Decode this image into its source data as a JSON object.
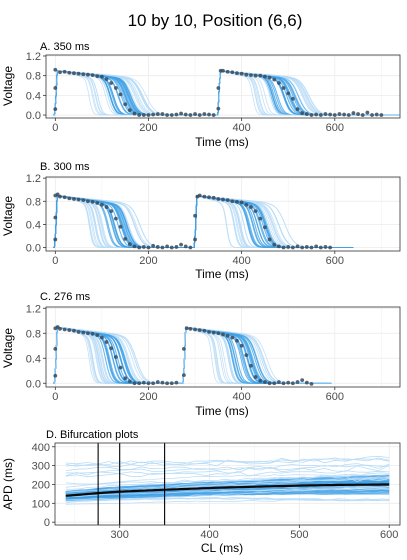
{
  "figure": {
    "title": "10 by 10, Position (6,6)",
    "colors": {
      "band_light": "#b9dcf7",
      "band_dark": "#3fa0e6",
      "ensemble_line": "#1a7fd4",
      "observed_points": "#3a4a5a",
      "mean_line": "#0a0a0a",
      "grid": "#ebebeb",
      "border": "#333333"
    }
  },
  "chart_data": [
    {
      "type": "line",
      "panel": "A. 350 ms",
      "xlabel": "Time (ms)",
      "ylabel": "Voltage",
      "xlim": [
        -20,
        740
      ],
      "ylim": [
        -0.06,
        1.22
      ],
      "xticks": [
        0,
        200,
        400,
        600
      ],
      "yticks": [
        0.0,
        0.4,
        0.8,
        1.2
      ],
      "ytick_labels": [
        "0.0",
        "0.4",
        "0.8",
        "1.2"
      ],
      "grid": true,
      "cycle_length": 350,
      "last_beat_end": 700,
      "median_apd": 165,
      "apd_range": [
        85,
        230
      ],
      "observed_points": [
        [
          0,
          0.12
        ],
        [
          0,
          0.55
        ],
        [
          0,
          0.92
        ],
        [
          10,
          0.87
        ],
        [
          20,
          0.88
        ],
        [
          30,
          0.86
        ],
        [
          40,
          0.85
        ],
        [
          50,
          0.84
        ],
        [
          60,
          0.83
        ],
        [
          70,
          0.82
        ],
        [
          80,
          0.81
        ],
        [
          90,
          0.79
        ],
        [
          100,
          0.78
        ],
        [
          110,
          0.73
        ],
        [
          120,
          0.65
        ],
        [
          130,
          0.55
        ],
        [
          140,
          0.42
        ],
        [
          150,
          0.22
        ],
        [
          160,
          0.1
        ],
        [
          170,
          0.03
        ],
        [
          180,
          0.0
        ],
        [
          190,
          0.0
        ],
        [
          200,
          0.0
        ],
        [
          210,
          0.01
        ],
        [
          220,
          0.02
        ],
        [
          230,
          0.02
        ],
        [
          240,
          0.0
        ],
        [
          250,
          0.0
        ],
        [
          260,
          0.01
        ],
        [
          270,
          0.03
        ],
        [
          280,
          0.01
        ],
        [
          290,
          0.0
        ],
        [
          300,
          0.02
        ],
        [
          310,
          0.0
        ],
        [
          320,
          0.02
        ],
        [
          330,
          0.01
        ],
        [
          340,
          0.0
        ],
        [
          350,
          0.13
        ],
        [
          350,
          0.55
        ],
        [
          355,
          0.9
        ],
        [
          360,
          0.9
        ],
        [
          370,
          0.88
        ],
        [
          380,
          0.87
        ],
        [
          390,
          0.85
        ],
        [
          400,
          0.84
        ],
        [
          410,
          0.82
        ],
        [
          420,
          0.81
        ],
        [
          430,
          0.8
        ],
        [
          440,
          0.8
        ],
        [
          450,
          0.78
        ],
        [
          460,
          0.76
        ],
        [
          470,
          0.72
        ],
        [
          480,
          0.65
        ],
        [
          490,
          0.55
        ],
        [
          500,
          0.44
        ],
        [
          510,
          0.33
        ],
        [
          520,
          0.12
        ],
        [
          530,
          0.04
        ],
        [
          540,
          0.02
        ],
        [
          550,
          0.0
        ],
        [
          560,
          0.01
        ],
        [
          570,
          0.0
        ],
        [
          580,
          0.02
        ],
        [
          590,
          0.01
        ],
        [
          600,
          0.0
        ],
        [
          610,
          0.02
        ],
        [
          620,
          0.01
        ],
        [
          630,
          0.0
        ],
        [
          640,
          0.04
        ],
        [
          650,
          0.02
        ],
        [
          660,
          0.0
        ],
        [
          670,
          0.05
        ],
        [
          680,
          0.0
        ],
        [
          690,
          0.01
        ],
        [
          700,
          0.0
        ]
      ]
    },
    {
      "type": "line",
      "panel": "B. 300 ms",
      "xlabel": "Time (ms)",
      "ylabel": "Voltage",
      "xlim": [
        -20,
        740
      ],
      "ylim": [
        -0.06,
        1.22
      ],
      "xticks": [
        0,
        200,
        400,
        600
      ],
      "yticks": [
        0.0,
        0.4,
        0.8,
        1.2
      ],
      "ytick_labels": [
        "0.0",
        "0.4",
        "0.8",
        "1.2"
      ],
      "grid": true,
      "cycle_length": 300,
      "last_beat_end": 600,
      "median_apd": 155,
      "apd_range": [
        85,
        215
      ],
      "observed_points": [
        [
          0,
          0.14
        ],
        [
          0,
          0.52
        ],
        [
          0,
          0.9
        ],
        [
          5,
          0.92
        ],
        [
          10,
          0.88
        ],
        [
          20,
          0.87
        ],
        [
          30,
          0.85
        ],
        [
          40,
          0.84
        ],
        [
          50,
          0.83
        ],
        [
          60,
          0.82
        ],
        [
          70,
          0.8
        ],
        [
          80,
          0.79
        ],
        [
          90,
          0.77
        ],
        [
          100,
          0.74
        ],
        [
          110,
          0.7
        ],
        [
          120,
          0.63
        ],
        [
          130,
          0.5
        ],
        [
          140,
          0.36
        ],
        [
          150,
          0.15
        ],
        [
          160,
          0.06
        ],
        [
          170,
          0.02
        ],
        [
          180,
          0.0
        ],
        [
          190,
          0.01
        ],
        [
          200,
          0.0
        ],
        [
          210,
          0.03
        ],
        [
          220,
          0.01
        ],
        [
          230,
          0.0
        ],
        [
          240,
          0.02
        ],
        [
          250,
          0.0
        ],
        [
          260,
          0.01
        ],
        [
          270,
          0.05
        ],
        [
          280,
          0.02
        ],
        [
          290,
          0.0
        ],
        [
          300,
          0.14
        ],
        [
          300,
          0.55
        ],
        [
          305,
          0.88
        ],
        [
          310,
          0.9
        ],
        [
          320,
          0.88
        ],
        [
          330,
          0.87
        ],
        [
          340,
          0.86
        ],
        [
          350,
          0.84
        ],
        [
          360,
          0.83
        ],
        [
          370,
          0.82
        ],
        [
          380,
          0.8
        ],
        [
          390,
          0.79
        ],
        [
          400,
          0.78
        ],
        [
          410,
          0.74
        ],
        [
          420,
          0.7
        ],
        [
          430,
          0.63
        ],
        [
          440,
          0.5
        ],
        [
          450,
          0.35
        ],
        [
          460,
          0.14
        ],
        [
          470,
          0.05
        ],
        [
          480,
          0.02
        ],
        [
          490,
          0.0
        ],
        [
          500,
          0.01
        ],
        [
          510,
          0.0
        ],
        [
          520,
          0.02
        ],
        [
          530,
          0.0
        ],
        [
          540,
          0.01
        ],
        [
          550,
          0.0
        ],
        [
          560,
          0.02
        ],
        [
          570,
          0.0
        ],
        [
          580,
          0.01
        ],
        [
          590,
          0.0
        ]
      ]
    },
    {
      "type": "line",
      "panel": "C. 276 ms",
      "xlabel": "Time (ms)",
      "ylabel": "Voltage",
      "xlim": [
        -20,
        740
      ],
      "ylim": [
        -0.06,
        1.22
      ],
      "xticks": [
        0,
        200,
        400,
        600
      ],
      "yticks": [
        0.0,
        0.4,
        0.8,
        1.2
      ],
      "ytick_labels": [
        "0.0",
        "0.4",
        "0.8",
        "1.2"
      ],
      "grid": true,
      "cycle_length": 276,
      "last_beat_end": 552,
      "median_apd": 150,
      "apd_range": [
        85,
        205
      ],
      "observed_points": [
        [
          0,
          0.12
        ],
        [
          0,
          0.55
        ],
        [
          0,
          0.88
        ],
        [
          5,
          0.9
        ],
        [
          10,
          0.87
        ],
        [
          20,
          0.86
        ],
        [
          30,
          0.85
        ],
        [
          40,
          0.84
        ],
        [
          50,
          0.82
        ],
        [
          60,
          0.81
        ],
        [
          70,
          0.8
        ],
        [
          80,
          0.79
        ],
        [
          90,
          0.77
        ],
        [
          100,
          0.73
        ],
        [
          110,
          0.66
        ],
        [
          120,
          0.56
        ],
        [
          130,
          0.42
        ],
        [
          140,
          0.25
        ],
        [
          150,
          0.08
        ],
        [
          160,
          0.03
        ],
        [
          170,
          0.0
        ],
        [
          180,
          0.0
        ],
        [
          190,
          0.01
        ],
        [
          200,
          0.0
        ],
        [
          210,
          0.0
        ],
        [
          220,
          0.02
        ],
        [
          230,
          0.01
        ],
        [
          240,
          0.0
        ],
        [
          250,
          0.0
        ],
        [
          260,
          0.01
        ],
        [
          276,
          0.13
        ],
        [
          276,
          0.55
        ],
        [
          282,
          0.88
        ],
        [
          290,
          0.87
        ],
        [
          300,
          0.86
        ],
        [
          310,
          0.85
        ],
        [
          320,
          0.84
        ],
        [
          330,
          0.82
        ],
        [
          340,
          0.81
        ],
        [
          350,
          0.8
        ],
        [
          360,
          0.78
        ],
        [
          370,
          0.76
        ],
        [
          380,
          0.73
        ],
        [
          390,
          0.68
        ],
        [
          400,
          0.6
        ],
        [
          410,
          0.45
        ],
        [
          420,
          0.28
        ],
        [
          430,
          0.1
        ],
        [
          440,
          0.04
        ],
        [
          450,
          0.02
        ],
        [
          460,
          0.0
        ],
        [
          470,
          0.0
        ],
        [
          480,
          0.02
        ],
        [
          490,
          0.0
        ],
        [
          500,
          0.01
        ],
        [
          510,
          0.0
        ],
        [
          520,
          0.02
        ],
        [
          530,
          0.05
        ],
        [
          540,
          0.01
        ],
        [
          550,
          -0.01
        ]
      ]
    },
    {
      "type": "line",
      "panel": "D. Bifurcation plots",
      "xlabel": "CL (ms)",
      "ylabel": "APD (ms)",
      "xlim": [
        228,
        612
      ],
      "ylim": [
        -15,
        420
      ],
      "xticks": [
        300,
        400,
        500,
        600
      ],
      "yticks": [
        0,
        100,
        200,
        300,
        400
      ],
      "grid": true,
      "vertical_lines": [
        276,
        300,
        350
      ],
      "mean_curve": {
        "x": [
          240,
          276,
          300,
          350,
          400,
          450,
          500,
          550,
          600
        ],
        "y": [
          140,
          154,
          162,
          172,
          181,
          188,
          194,
          198,
          200
        ]
      },
      "band_inner": {
        "x": [
          240,
          300,
          400,
          500,
          600
        ],
        "lower": [
          115,
          128,
          140,
          148,
          150
        ],
        "upper": [
          165,
          190,
          215,
          235,
          250
        ]
      },
      "band_outer": {
        "x": [
          240,
          300,
          400,
          500,
          600
        ],
        "lower": [
          95,
          100,
          110,
          112,
          115
        ],
        "upper": [
          185,
          215,
          250,
          275,
          290
        ]
      }
    }
  ]
}
